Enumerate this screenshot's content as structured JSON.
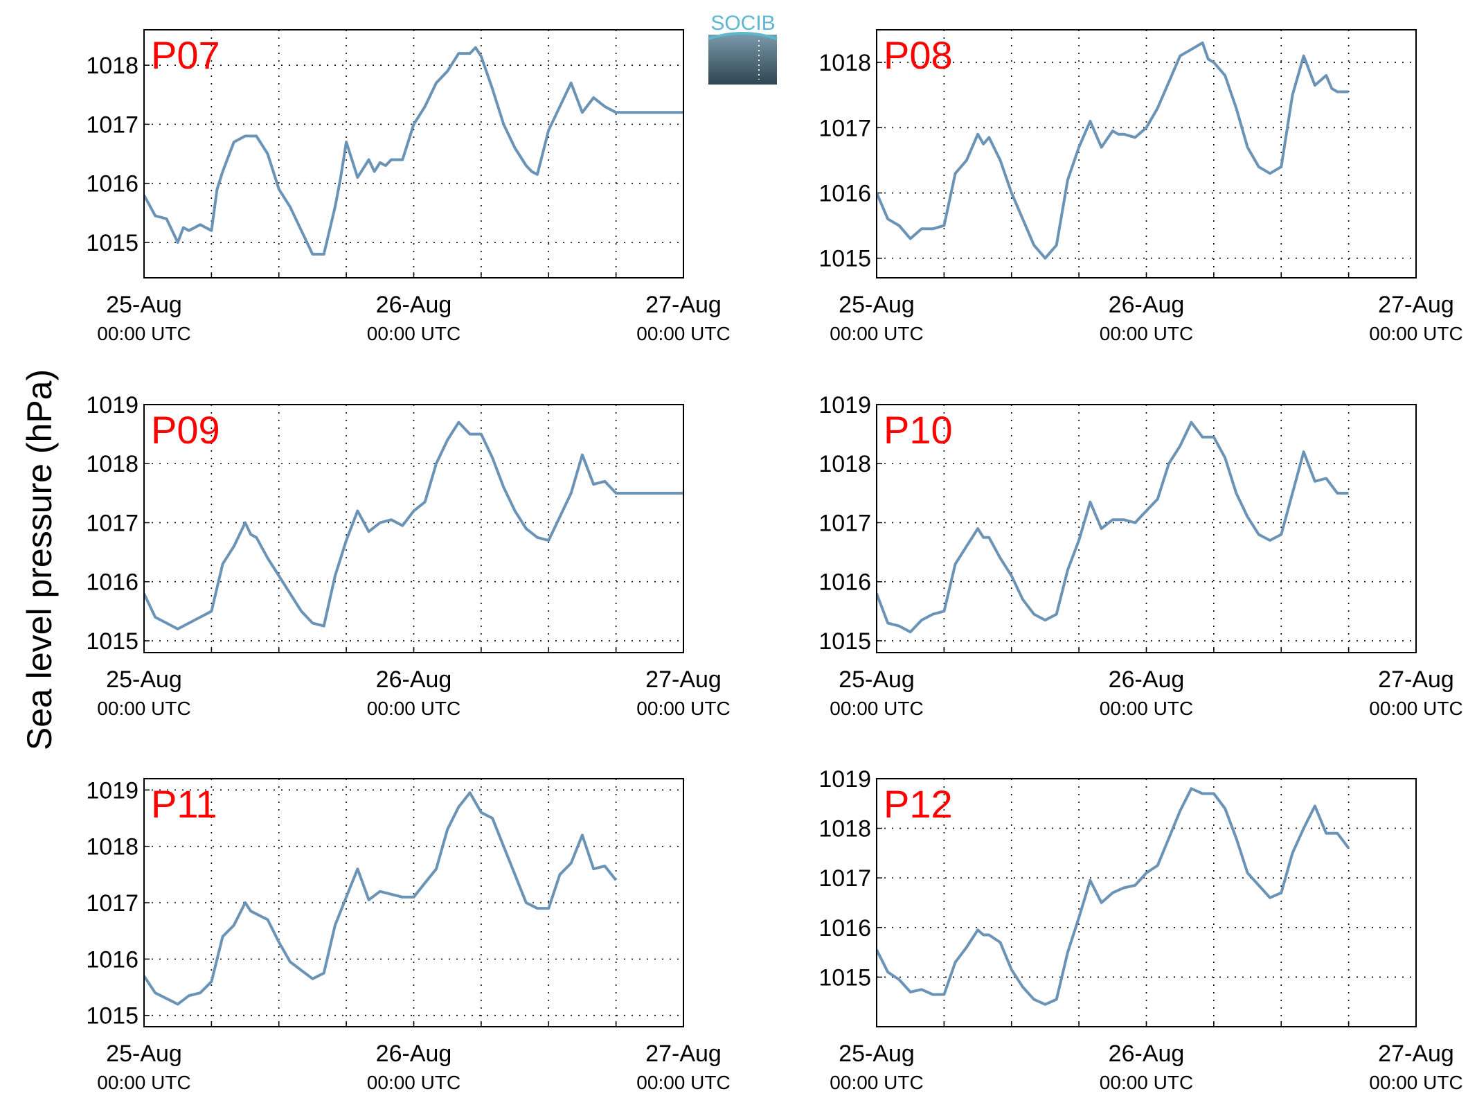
{
  "figure": {
    "ylabel": "Sea level pressure (hPa)",
    "logo_text": "SOCIB",
    "line_color": "#6a93b5",
    "title_color": "#ff0000"
  },
  "chart_data": [
    {
      "type": "line",
      "title": "P07",
      "xlim": [
        0,
        48
      ],
      "ylim": [
        1014.4,
        1018.6
      ],
      "xticks": [
        {
          "x": 0,
          "label": "25-Aug",
          "sublabel": "00:00 UTC"
        },
        {
          "x": 24,
          "label": "26-Aug",
          "sublabel": "00:00 UTC"
        },
        {
          "x": 48,
          "label": "27-Aug",
          "sublabel": "00:00 UTC"
        }
      ],
      "yticks": [
        1015,
        1016,
        1017,
        1018
      ],
      "grid": true,
      "x": [
        0,
        1,
        2,
        3,
        3.5,
        4,
        5,
        6,
        6.5,
        7,
        8,
        9,
        10,
        11,
        12,
        13,
        14,
        15,
        16,
        17,
        17.5,
        18,
        19,
        20,
        20.5,
        21,
        21.5,
        22,
        23,
        24,
        25,
        26,
        27,
        28,
        29,
        29.5,
        30,
        31,
        32,
        33,
        34,
        34.5,
        35,
        36,
        37,
        38,
        39,
        40,
        41,
        42,
        42.5,
        43,
        44,
        45,
        45.5,
        46,
        46.5,
        47,
        47.5,
        48
      ],
      "y": [
        1015.8,
        1015.45,
        1015.4,
        1015.0,
        1015.25,
        1015.2,
        1015.3,
        1015.2,
        1015.9,
        1016.2,
        1016.7,
        1016.8,
        1016.8,
        1016.5,
        1015.9,
        1015.6,
        1015.2,
        1014.8,
        1014.8,
        1015.6,
        1016.1,
        1016.7,
        1016.1,
        1016.4,
        1016.2,
        1016.35,
        1016.3,
        1016.4,
        1016.4,
        1017.0,
        1017.3,
        1017.7,
        1017.9,
        1018.2,
        1018.2,
        1018.3,
        1018.15,
        1017.6,
        1017.0,
        1016.6,
        1016.3,
        1016.2,
        1016.15,
        1016.9,
        1017.3,
        1017.7,
        1017.2,
        1017.45,
        1017.3,
        1017.2,
        1017.2,
        1017.2,
        1017.2,
        1017.2,
        1017.2,
        1017.2,
        1017.2,
        1017.2,
        1017.2,
        1017.2
      ]
    },
    {
      "type": "line",
      "title": "P08",
      "xlim": [
        0,
        48
      ],
      "ylim": [
        1014.7,
        1018.5
      ],
      "xticks": [
        {
          "x": 0,
          "label": "25-Aug",
          "sublabel": "00:00 UTC"
        },
        {
          "x": 24,
          "label": "26-Aug",
          "sublabel": "00:00 UTC"
        },
        {
          "x": 48,
          "label": "27-Aug",
          "sublabel": "00:00 UTC"
        }
      ],
      "yticks": [
        1015,
        1016,
        1017,
        1018
      ],
      "grid": true,
      "x": [
        0,
        1,
        2,
        3,
        4,
        5,
        6,
        7,
        8,
        9,
        9.5,
        10,
        11,
        12,
        13,
        14,
        15,
        16,
        17,
        18,
        19,
        20,
        21,
        21.5,
        22,
        23,
        24,
        25,
        26,
        27,
        28,
        29,
        29.5,
        30,
        31,
        32,
        33,
        34,
        35,
        36,
        37,
        38,
        39,
        40,
        40.5,
        41,
        42
      ],
      "y": [
        1016.0,
        1015.6,
        1015.5,
        1015.3,
        1015.45,
        1015.45,
        1015.5,
        1016.3,
        1016.5,
        1016.9,
        1016.75,
        1016.85,
        1016.5,
        1016.0,
        1015.6,
        1015.2,
        1015.0,
        1015.2,
        1016.2,
        1016.7,
        1017.1,
        1016.7,
        1016.95,
        1016.9,
        1016.9,
        1016.85,
        1017.0,
        1017.3,
        1017.7,
        1018.1,
        1018.2,
        1018.3,
        1018.05,
        1018.0,
        1017.8,
        1017.3,
        1016.7,
        1016.4,
        1016.3,
        1016.4,
        1017.5,
        1018.1,
        1017.65,
        1017.8,
        1017.6,
        1017.55,
        1017.55
      ]
    },
    {
      "type": "line",
      "title": "P09",
      "xlim": [
        0,
        48
      ],
      "ylim": [
        1014.8,
        1019.0
      ],
      "xticks": [
        {
          "x": 0,
          "label": "25-Aug",
          "sublabel": "00:00 UTC"
        },
        {
          "x": 24,
          "label": "26-Aug",
          "sublabel": "00:00 UTC"
        },
        {
          "x": 48,
          "label": "27-Aug",
          "sublabel": "00:00 UTC"
        }
      ],
      "yticks": [
        1015,
        1016,
        1017,
        1018,
        1019
      ],
      "grid": true,
      "x": [
        0,
        1,
        2,
        3,
        4,
        5,
        6,
        7,
        8,
        9,
        9.5,
        10,
        11,
        12,
        13,
        14,
        15,
        16,
        17,
        18,
        19,
        20,
        21,
        22,
        23,
        24,
        25,
        26,
        27,
        28,
        29,
        30,
        31,
        32,
        33,
        34,
        35,
        36,
        37,
        38,
        39,
        40,
        41,
        42,
        43,
        44,
        45,
        46,
        47,
        48
      ],
      "y": [
        1015.8,
        1015.4,
        1015.3,
        1015.2,
        1015.3,
        1015.4,
        1015.5,
        1016.3,
        1016.6,
        1017.0,
        1016.8,
        1016.75,
        1016.4,
        1016.1,
        1015.8,
        1015.5,
        1015.3,
        1015.25,
        1016.1,
        1016.7,
        1017.2,
        1016.85,
        1017.0,
        1017.05,
        1016.95,
        1017.2,
        1017.35,
        1018.0,
        1018.4,
        1018.7,
        1018.5,
        1018.5,
        1018.1,
        1017.6,
        1017.2,
        1016.9,
        1016.75,
        1016.7,
        1017.1,
        1017.5,
        1018.15,
        1017.65,
        1017.7,
        1017.5,
        1017.5,
        1017.5,
        1017.5,
        1017.5,
        1017.5,
        1017.5
      ]
    },
    {
      "type": "line",
      "title": "P10",
      "xlim": [
        0,
        48
      ],
      "ylim": [
        1014.8,
        1019.0
      ],
      "xticks": [
        {
          "x": 0,
          "label": "25-Aug",
          "sublabel": "00:00 UTC"
        },
        {
          "x": 24,
          "label": "26-Aug",
          "sublabel": "00:00 UTC"
        },
        {
          "x": 48,
          "label": "27-Aug",
          "sublabel": "00:00 UTC"
        }
      ],
      "yticks": [
        1015,
        1016,
        1017,
        1018,
        1019
      ],
      "grid": true,
      "x": [
        0,
        1,
        2,
        3,
        4,
        5,
        6,
        7,
        8,
        9,
        9.5,
        10,
        11,
        12,
        13,
        14,
        15,
        16,
        17,
        18,
        19,
        20,
        21,
        22,
        23,
        24,
        25,
        26,
        27,
        28,
        29,
        30,
        31,
        32,
        33,
        34,
        35,
        36,
        37,
        38,
        39,
        40,
        41,
        42
      ],
      "y": [
        1015.8,
        1015.3,
        1015.25,
        1015.15,
        1015.35,
        1015.45,
        1015.5,
        1016.3,
        1016.6,
        1016.9,
        1016.75,
        1016.75,
        1016.4,
        1016.1,
        1015.7,
        1015.45,
        1015.35,
        1015.45,
        1016.2,
        1016.7,
        1017.35,
        1016.9,
        1017.05,
        1017.05,
        1017.0,
        1017.2,
        1017.4,
        1018.0,
        1018.3,
        1018.7,
        1018.45,
        1018.45,
        1018.1,
        1017.5,
        1017.1,
        1016.8,
        1016.7,
        1016.8,
        1017.5,
        1018.2,
        1017.7,
        1017.75,
        1017.5,
        1017.5
      ]
    },
    {
      "type": "line",
      "title": "P11",
      "xlim": [
        0,
        48
      ],
      "ylim": [
        1014.8,
        1019.2
      ],
      "xticks": [
        {
          "x": 0,
          "label": "25-Aug",
          "sublabel": "00:00 UTC"
        },
        {
          "x": 24,
          "label": "26-Aug",
          "sublabel": "00:00 UTC"
        },
        {
          "x": 48,
          "label": "27-Aug",
          "sublabel": "00:00 UTC"
        }
      ],
      "yticks": [
        1015,
        1016,
        1017,
        1018,
        1019
      ],
      "grid": true,
      "x": [
        0,
        1,
        2,
        3,
        4,
        5,
        6,
        7,
        8,
        9,
        9.5,
        10,
        11,
        12,
        13,
        14,
        15,
        16,
        17,
        18,
        19,
        20,
        21,
        22,
        23,
        24,
        25,
        26,
        27,
        28,
        29,
        30,
        31,
        32,
        33,
        34,
        35,
        36,
        37,
        38,
        39,
        40,
        41,
        42
      ],
      "y": [
        1015.7,
        1015.4,
        1015.3,
        1015.2,
        1015.35,
        1015.4,
        1015.6,
        1016.4,
        1016.6,
        1017.0,
        1016.85,
        1016.8,
        1016.7,
        1016.3,
        1015.95,
        1015.8,
        1015.65,
        1015.75,
        1016.6,
        1017.1,
        1017.6,
        1017.05,
        1017.2,
        1017.15,
        1017.1,
        1017.1,
        1017.35,
        1017.6,
        1018.3,
        1018.7,
        1018.95,
        1018.6,
        1018.5,
        1018.0,
        1017.5,
        1017.0,
        1016.9,
        1016.9,
        1017.5,
        1017.7,
        1018.2,
        1017.6,
        1017.65,
        1017.4
      ]
    },
    {
      "type": "line",
      "title": "P12",
      "xlim": [
        0,
        48
      ],
      "ylim": [
        1014.0,
        1019.0
      ],
      "xticks": [
        {
          "x": 0,
          "label": "25-Aug",
          "sublabel": "00:00 UTC"
        },
        {
          "x": 24,
          "label": "26-Aug",
          "sublabel": "00:00 UTC"
        },
        {
          "x": 48,
          "label": "27-Aug",
          "sublabel": "00:00 UTC"
        }
      ],
      "yticks": [
        1015,
        1016,
        1017,
        1018,
        1019
      ],
      "grid": true,
      "x": [
        0,
        1,
        2,
        3,
        4,
        5,
        6,
        7,
        8,
        9,
        9.5,
        10,
        11,
        12,
        13,
        14,
        15,
        16,
        17,
        18,
        19,
        20,
        21,
        22,
        23,
        24,
        25,
        26,
        27,
        28,
        29,
        30,
        31,
        32,
        33,
        34,
        35,
        36,
        37,
        38,
        39,
        40,
        41,
        42
      ],
      "y": [
        1015.55,
        1015.1,
        1014.95,
        1014.7,
        1014.75,
        1014.65,
        1014.65,
        1015.3,
        1015.6,
        1015.95,
        1015.85,
        1015.85,
        1015.7,
        1015.15,
        1014.8,
        1014.55,
        1014.45,
        1014.55,
        1015.5,
        1016.2,
        1016.95,
        1016.5,
        1016.7,
        1016.8,
        1016.85,
        1017.1,
        1017.25,
        1017.8,
        1018.35,
        1018.8,
        1018.7,
        1018.7,
        1018.4,
        1017.8,
        1017.1,
        1016.85,
        1016.6,
        1016.7,
        1017.5,
        1018.0,
        1018.45,
        1017.9,
        1017.9,
        1017.6
      ]
    }
  ]
}
